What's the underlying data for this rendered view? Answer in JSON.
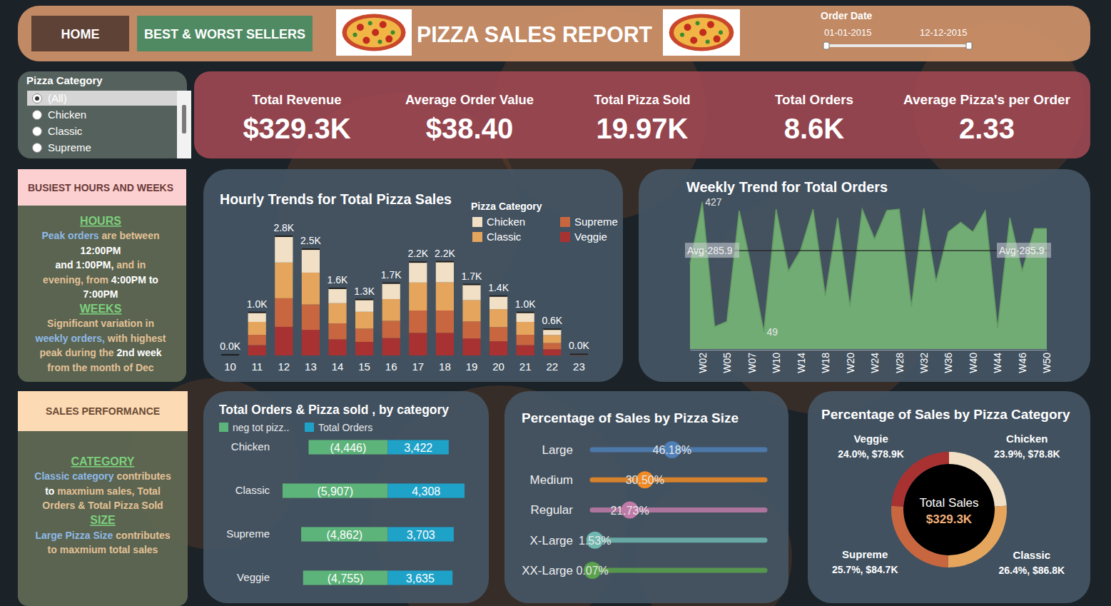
{
  "header": {
    "buttons": [
      "HOME",
      "BEST & WORST SELLERS"
    ],
    "title": "PIZZA SALES REPORT",
    "date_filter": {
      "label": "Order Date",
      "start": "01-01-2015",
      "end": "12-12-2015"
    }
  },
  "filter": {
    "title": "Pizza Category",
    "options": [
      "(All)",
      "Chicken",
      "Classic",
      "Supreme"
    ]
  },
  "kpis": [
    {
      "label": "Total Revenue",
      "value": "$329.3K"
    },
    {
      "label": "Average Order Value",
      "value": "$38.40"
    },
    {
      "label": "Total Pizza Sold",
      "value": "19.97K"
    },
    {
      "label": "Total Orders",
      "value": "8.6K"
    },
    {
      "label": "Average Pizza's per Order",
      "value": "2.33"
    }
  ],
  "notes": [
    {
      "title": "BUSIEST HOURS AND WEEKS",
      "sections": [
        {
          "heading": "HOURS",
          "lines": [
            [
              {
                "text": "Peak orders",
                "color": "#8fb9e6"
              },
              {
                "text": " are between",
                "color": "#e3c197"
              }
            ],
            [
              {
                "text": "12:00PM",
                "color": "#ffffff"
              }
            ],
            [
              {
                "text": "and 1:00PM,",
                "color": "#ffffff"
              },
              {
                "text": " and in",
                "color": "#e3c197"
              }
            ],
            [
              {
                "text": "evening, from",
                "color": "#e3c197"
              },
              {
                "text": " 4:00PM to",
                "color": "#ffffff"
              }
            ],
            [
              {
                "text": "7:00PM",
                "color": "#ffffff"
              }
            ]
          ]
        },
        {
          "heading": "WEEKS",
          "lines": [
            [
              {
                "text": "Significant variation in",
                "color": "#e3c197"
              }
            ],
            [
              {
                "text": "weekly orders,",
                "color": "#8fb9e6"
              },
              {
                "text": " with highest",
                "color": "#e3c197"
              }
            ],
            [
              {
                "text": "peak during the",
                "color": "#e3c197"
              },
              {
                "text": " 2nd week",
                "color": "#ffffff"
              }
            ],
            [
              {
                "text": "from the month of Dec",
                "color": "#e3c197"
              }
            ]
          ]
        }
      ]
    },
    {
      "title": "SALES PERFORMANCE",
      "sections": [
        {
          "heading": "CATEGORY",
          "lines": [
            [
              {
                "text": "Classic category",
                "color": "#8fb9e6"
              },
              {
                "text": " contributes",
                "color": "#e3c197"
              }
            ],
            [
              {
                "text": "to",
                "color": "#ffffff"
              },
              {
                "text": " maxmium sales, Total",
                "color": "#e3c197"
              }
            ],
            [
              {
                "text": "Orders & Total Pizza Sold",
                "color": "#e3c197"
              }
            ]
          ]
        },
        {
          "heading": "SIZE",
          "lines": [
            [
              {
                "text": "Large Pizza Size",
                "color": "#8fb9e6"
              },
              {
                "text": " contributes",
                "color": "#e3c197"
              }
            ],
            [
              {
                "text": "to maxmium total sales",
                "color": "#e3c197"
              }
            ]
          ]
        }
      ]
    }
  ],
  "chart_data": [
    {
      "type": "bar",
      "title": "Hourly Trends for Total Pizza Sales",
      "stacked": true,
      "legend": "top right",
      "legend_title": "Pizza Category",
      "tick_labels": "x",
      "data_labels": true,
      "categories": [
        "10",
        "11",
        "12",
        "13",
        "14",
        "15",
        "16",
        "17",
        "18",
        "19",
        "20",
        "21",
        "22",
        "23"
      ],
      "series": [
        {
          "name": "Chicken",
          "color": "#f1e0c5",
          "values": [
            3,
            220,
            610,
            545,
            345,
            285,
            370,
            475,
            480,
            365,
            305,
            220,
            135,
            5
          ]
        },
        {
          "name": "Classic",
          "color": "#e5a55d",
          "values": [
            5,
            300,
            830,
            740,
            470,
            390,
            505,
            650,
            655,
            495,
            415,
            300,
            185,
            8
          ]
        },
        {
          "name": "Supreme",
          "color": "#c8673f",
          "values": [
            4,
            240,
            665,
            590,
            370,
            310,
            400,
            520,
            520,
            395,
            330,
            240,
            145,
            6
          ]
        },
        {
          "name": "Veggie",
          "color": "#a83232",
          "values": [
            3,
            240,
            665,
            595,
            375,
            315,
            405,
            525,
            525,
            395,
            330,
            240,
            145,
            6
          ]
        }
      ],
      "totals": {
        "values": [
          15,
          1000,
          2770,
          2470,
          1560,
          1300,
          1680,
          2170,
          2180,
          1650,
          1380,
          1000,
          610,
          25
        ],
        "value_labels": [
          "0.0K",
          "1.0K",
          "2.8K",
          "2.5K",
          "1.6K",
          "1.3K",
          "1.7K",
          "2.2K",
          "2.2K",
          "1.7K",
          "1.4K",
          "1.0K",
          "0.6K",
          "0.0K"
        ]
      }
    },
    {
      "type": "area",
      "title": "Weekly Trend for Total Orders",
      "color": "#7dc37a",
      "tick_labels": "x",
      "categories": [
        null,
        "W02",
        null,
        "W05",
        null,
        "W07",
        null,
        "W10",
        null,
        "W14",
        null,
        "W18",
        null,
        "W20",
        null,
        "W24",
        null,
        "W28",
        null,
        "W32",
        null,
        "W36",
        null,
        "W40",
        null,
        "W44",
        null,
        "W46",
        null,
        "W50"
      ],
      "values": [
        247,
        427,
        65,
        80,
        402,
        236,
        49,
        406,
        226,
        288,
        406,
        154,
        381,
        123,
        406,
        319,
        402,
        406,
        123,
        408,
        195,
        340,
        368,
        340,
        402,
        60,
        381,
        226,
        350,
        350
      ],
      "value_labels": [
        null,
        "427",
        null,
        null,
        null,
        null,
        "49",
        null,
        null,
        null,
        null,
        null,
        null,
        null,
        null,
        null,
        null,
        null,
        null,
        null,
        null,
        null,
        null,
        null,
        null,
        null,
        null,
        null,
        null,
        null
      ],
      "reference_line": {
        "value": 285.9,
        "label": "Avg-285.9"
      }
    },
    {
      "type": "bar",
      "orientation": "horizontal",
      "title": "Total Orders & Pizza sold , by category",
      "legend": "top left",
      "data_labels": true,
      "tick_labels": "y",
      "categories": [
        "Chicken",
        "Classic",
        "Supreme",
        "Veggie"
      ],
      "series": [
        {
          "name": "neg tot pizz..",
          "color": "#5db47a",
          "values": [
            -4446,
            -5907,
            -4862,
            -4755
          ],
          "value_labels": [
            "(4,446)",
            "(5,907)",
            "(4,862)",
            "(4,755)"
          ]
        },
        {
          "name": "Total Orders",
          "color": "#1fa2c8",
          "values": [
            3422,
            4308,
            3703,
            3635
          ],
          "value_labels": [
            "3,422",
            "4,308",
            "3,703",
            "3,635"
          ]
        }
      ]
    },
    {
      "type": "dot",
      "title": "Percentage of Sales by Pizza Size",
      "data_labels": true,
      "tick_labels": "y",
      "categories": [
        "Large",
        "Medium",
        "Regular",
        "X-Large",
        "XX-Large"
      ],
      "values": [
        46.18,
        30.5,
        21.73,
        1.53,
        0.07
      ],
      "value_labels": [
        "46.18%",
        "30.50%",
        "21.73%",
        "1.53%",
        "0.07%"
      ],
      "colors": [
        "#4e7fb8",
        "#f08a24",
        "#c07aa8",
        "#6fb8b0",
        "#5aa24c"
      ],
      "xlim": [
        0,
        100
      ]
    },
    {
      "type": "pie",
      "title": "Percentage of Sales by Pizza Category",
      "data_labels": true,
      "categories": [
        "Chicken",
        "Classic",
        "Supreme",
        "Veggie"
      ],
      "values": [
        78800,
        86800,
        84700,
        78900
      ],
      "value_labels": [
        "23.9%, $78.8K",
        "26.4%, $86.8K",
        "25.7%, $84.7K",
        "24.0%, $78.9K"
      ],
      "colors": [
        "#f1e0c5",
        "#e5a55d",
        "#c8673f",
        "#a83232"
      ],
      "center_text": [
        "Total Sales",
        "$329.3K"
      ]
    }
  ]
}
